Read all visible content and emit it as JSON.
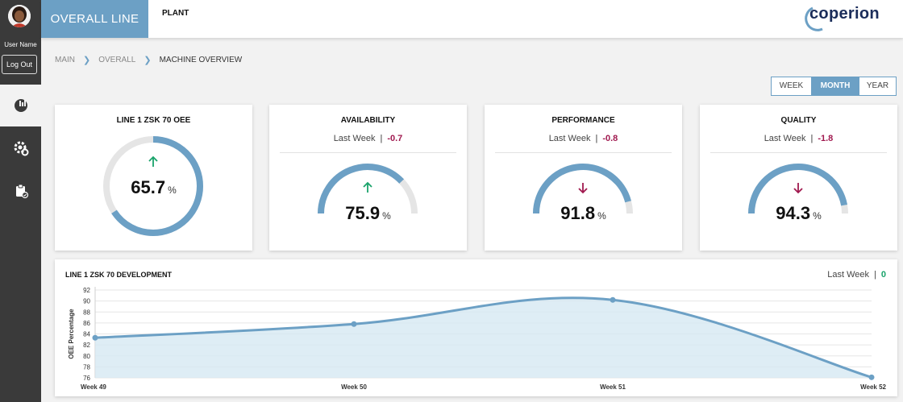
{
  "sidebar": {
    "user_name": "User Name",
    "logout_label": "Log Out",
    "items": [
      {
        "icon": "chart-icon",
        "active": true
      },
      {
        "icon": "settings-icon",
        "active": false
      },
      {
        "icon": "clipboard-icon",
        "active": false
      }
    ]
  },
  "header": {
    "overall_tab": "OVERALL LINE",
    "plant_tab": "PLANT",
    "logo_text": "coperion"
  },
  "breadcrumb": [
    "MAIN",
    "OVERALL",
    "MACHINE OVERVIEW"
  ],
  "period": {
    "options": [
      "WEEK",
      "MONTH",
      "YEAR"
    ],
    "selected": "MONTH"
  },
  "colors": {
    "accent": "#6ca0c5",
    "track": "#e5e5e5",
    "up": "#1aa36b",
    "down": "#a0194f",
    "zero": "#1aa36b"
  },
  "cards": {
    "oee": {
      "title": "LINE 1 ZSK 70 OEE",
      "value": "65.7",
      "unit": "%",
      "trend": "up",
      "fraction": 0.657
    },
    "availability": {
      "title": "AVAILABILITY",
      "sub_label": "Last Week",
      "delta": "-0.7",
      "value": "75.9",
      "unit": "%",
      "trend": "up",
      "fraction": 0.759
    },
    "performance": {
      "title": "PERFORMANCE",
      "sub_label": "Last Week",
      "delta": "-0.8",
      "value": "91.8",
      "unit": "%",
      "trend": "down",
      "fraction": 0.918
    },
    "quality": {
      "title": "QUALITY",
      "sub_label": "Last Week",
      "delta": "-1.8",
      "value": "94.3",
      "unit": "%",
      "trend": "down",
      "fraction": 0.943
    }
  },
  "development": {
    "title": "LINE 1 ZSK 70 DEVELOPMENT",
    "sub_label": "Last Week",
    "delta": "0"
  },
  "chart_data": {
    "type": "area",
    "x": [
      "Week 49",
      "Week 50",
      "Week 51",
      "Week 52"
    ],
    "series": [
      {
        "values": [
          83.3,
          85.8,
          90.2,
          76.1
        ]
      }
    ],
    "ylabel": "OEE Percentage",
    "ylim": [
      76,
      92
    ],
    "yticks": [
      92,
      90,
      88,
      86,
      84,
      82,
      80,
      78,
      76
    ],
    "grid": true
  }
}
